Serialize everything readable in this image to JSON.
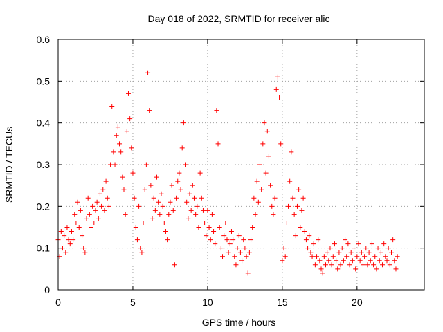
{
  "chart_data": {
    "type": "scatter",
    "title": "Day 018 of 2022, SRMTID for receiver alic",
    "xlabel": "GPS time / hours",
    "ylabel": "SRMTID / TECUs",
    "xlim": [
      0,
      24.5
    ],
    "ylim": [
      0,
      0.6
    ],
    "x_ticks": [
      0,
      5,
      10,
      15,
      20
    ],
    "y_ticks": [
      0,
      0.1,
      0.2,
      0.3,
      0.4,
      0.5,
      0.6
    ],
    "x_tick_labels": [
      "0",
      "5",
      "10",
      "15",
      "20"
    ],
    "y_tick_labels": [
      "0",
      "0.1",
      "0.2",
      "0.3",
      "0.4",
      "0.5",
      "0.6"
    ],
    "grid": true,
    "marker": "+",
    "color": "#ff0000",
    "series": [
      {
        "name": "SRMTID",
        "points": [
          [
            0.0,
            0.12
          ],
          [
            0.1,
            0.08
          ],
          [
            0.2,
            0.14
          ],
          [
            0.3,
            0.1
          ],
          [
            0.4,
            0.13
          ],
          [
            0.5,
            0.09
          ],
          [
            0.6,
            0.15
          ],
          [
            0.7,
            0.12
          ],
          [
            0.8,
            0.11
          ],
          [
            0.9,
            0.14
          ],
          [
            1.0,
            0.12
          ],
          [
            1.1,
            0.18
          ],
          [
            1.2,
            0.16
          ],
          [
            1.3,
            0.21
          ],
          [
            1.4,
            0.15
          ],
          [
            1.5,
            0.19
          ],
          [
            1.6,
            0.13
          ],
          [
            1.7,
            0.1
          ],
          [
            1.8,
            0.09
          ],
          [
            1.9,
            0.17
          ],
          [
            2.0,
            0.22
          ],
          [
            2.1,
            0.18
          ],
          [
            2.2,
            0.15
          ],
          [
            2.3,
            0.2
          ],
          [
            2.4,
            0.16
          ],
          [
            2.5,
            0.19
          ],
          [
            2.6,
            0.21
          ],
          [
            2.7,
            0.17
          ],
          [
            2.8,
            0.23
          ],
          [
            2.9,
            0.2
          ],
          [
            3.0,
            0.24
          ],
          [
            3.1,
            0.19
          ],
          [
            3.2,
            0.26
          ],
          [
            3.3,
            0.22
          ],
          [
            3.4,
            0.2
          ],
          [
            3.5,
            0.3
          ],
          [
            3.6,
            0.44
          ],
          [
            3.7,
            0.33
          ],
          [
            3.8,
            0.3
          ],
          [
            3.9,
            0.37
          ],
          [
            4.0,
            0.39
          ],
          [
            4.1,
            0.35
          ],
          [
            4.2,
            0.33
          ],
          [
            4.3,
            0.27
          ],
          [
            4.4,
            0.24
          ],
          [
            4.5,
            0.18
          ],
          [
            4.6,
            0.38
          ],
          [
            4.7,
            0.47
          ],
          [
            4.8,
            0.41
          ],
          [
            4.9,
            0.34
          ],
          [
            5.0,
            0.28
          ],
          [
            5.1,
            0.22
          ],
          [
            5.2,
            0.15
          ],
          [
            5.3,
            0.12
          ],
          [
            5.4,
            0.2
          ],
          [
            5.5,
            0.1
          ],
          [
            5.6,
            0.09
          ],
          [
            5.7,
            0.16
          ],
          [
            5.8,
            0.24
          ],
          [
            5.9,
            0.3
          ],
          [
            6.0,
            0.52
          ],
          [
            6.1,
            0.43
          ],
          [
            6.2,
            0.25
          ],
          [
            6.3,
            0.17
          ],
          [
            6.4,
            0.22
          ],
          [
            6.5,
            0.19
          ],
          [
            6.6,
            0.27
          ],
          [
            6.7,
            0.21
          ],
          [
            6.8,
            0.18
          ],
          [
            6.9,
            0.23
          ],
          [
            7.0,
            0.2
          ],
          [
            7.1,
            0.16
          ],
          [
            7.2,
            0.14
          ],
          [
            7.3,
            0.12
          ],
          [
            7.4,
            0.18
          ],
          [
            7.5,
            0.21
          ],
          [
            7.6,
            0.25
          ],
          [
            7.7,
            0.19
          ],
          [
            7.8,
            0.06
          ],
          [
            7.9,
            0.22
          ],
          [
            8.0,
            0.26
          ],
          [
            8.1,
            0.28
          ],
          [
            8.2,
            0.24
          ],
          [
            8.3,
            0.34
          ],
          [
            8.4,
            0.4
          ],
          [
            8.5,
            0.3
          ],
          [
            8.6,
            0.21
          ],
          [
            8.7,
            0.17
          ],
          [
            8.8,
            0.23
          ],
          [
            8.9,
            0.19
          ],
          [
            9.0,
            0.25
          ],
          [
            9.1,
            0.22
          ],
          [
            9.2,
            0.18
          ],
          [
            9.3,
            0.2
          ],
          [
            9.4,
            0.15
          ],
          [
            9.5,
            0.28
          ],
          [
            9.6,
            0.22
          ],
          [
            9.7,
            0.19
          ],
          [
            9.8,
            0.16
          ],
          [
            9.9,
            0.13
          ],
          [
            10.0,
            0.19
          ],
          [
            10.1,
            0.15
          ],
          [
            10.2,
            0.12
          ],
          [
            10.3,
            0.18
          ],
          [
            10.4,
            0.14
          ],
          [
            10.5,
            0.11
          ],
          [
            10.6,
            0.43
          ],
          [
            10.7,
            0.35
          ],
          [
            10.8,
            0.15
          ],
          [
            10.9,
            0.1
          ],
          [
            11.0,
            0.08
          ],
          [
            11.1,
            0.13
          ],
          [
            11.2,
            0.16
          ],
          [
            11.3,
            0.12
          ],
          [
            11.4,
            0.09
          ],
          [
            11.5,
            0.11
          ],
          [
            11.6,
            0.14
          ],
          [
            11.7,
            0.12
          ],
          [
            11.8,
            0.08
          ],
          [
            11.9,
            0.06
          ],
          [
            12.0,
            0.1
          ],
          [
            12.1,
            0.13
          ],
          [
            12.2,
            0.09
          ],
          [
            12.3,
            0.07
          ],
          [
            12.4,
            0.12
          ],
          [
            12.5,
            0.1
          ],
          [
            12.6,
            0.08
          ],
          [
            12.7,
            0.04
          ],
          [
            12.8,
            0.09
          ],
          [
            12.9,
            0.12
          ],
          [
            13.0,
            0.15
          ],
          [
            13.1,
            0.22
          ],
          [
            13.2,
            0.18
          ],
          [
            13.3,
            0.26
          ],
          [
            13.4,
            0.21
          ],
          [
            13.5,
            0.3
          ],
          [
            13.6,
            0.24
          ],
          [
            13.7,
            0.35
          ],
          [
            13.8,
            0.4
          ],
          [
            13.9,
            0.28
          ],
          [
            14.0,
            0.38
          ],
          [
            14.1,
            0.32
          ],
          [
            14.2,
            0.25
          ],
          [
            14.3,
            0.2
          ],
          [
            14.4,
            0.18
          ],
          [
            14.5,
            0.22
          ],
          [
            14.6,
            0.48
          ],
          [
            14.7,
            0.51
          ],
          [
            14.8,
            0.46
          ],
          [
            14.9,
            0.35
          ],
          [
            15.0,
            0.07
          ],
          [
            15.1,
            0.1
          ],
          [
            15.2,
            0.08
          ],
          [
            15.3,
            0.16
          ],
          [
            15.4,
            0.2
          ],
          [
            15.5,
            0.26
          ],
          [
            15.6,
            0.33
          ],
          [
            15.7,
            0.22
          ],
          [
            15.8,
            0.18
          ],
          [
            15.9,
            0.13
          ],
          [
            16.0,
            0.2
          ],
          [
            16.1,
            0.24
          ],
          [
            16.2,
            0.15
          ],
          [
            16.3,
            0.19
          ],
          [
            16.4,
            0.22
          ],
          [
            16.5,
            0.14
          ],
          [
            16.6,
            0.12
          ],
          [
            16.7,
            0.1
          ],
          [
            16.8,
            0.13
          ],
          [
            16.9,
            0.09
          ],
          [
            17.0,
            0.08
          ],
          [
            17.1,
            0.11
          ],
          [
            17.2,
            0.06
          ],
          [
            17.3,
            0.08
          ],
          [
            17.4,
            0.12
          ],
          [
            17.5,
            0.07
          ],
          [
            17.6,
            0.05
          ],
          [
            17.7,
            0.04
          ],
          [
            17.8,
            0.08
          ],
          [
            17.9,
            0.06
          ],
          [
            18.0,
            0.09
          ],
          [
            18.1,
            0.07
          ],
          [
            18.2,
            0.1
          ],
          [
            18.3,
            0.06
          ],
          [
            18.4,
            0.08
          ],
          [
            18.5,
            0.11
          ],
          [
            18.6,
            0.07
          ],
          [
            18.7,
            0.05
          ],
          [
            18.8,
            0.09
          ],
          [
            18.9,
            0.06
          ],
          [
            19.0,
            0.1
          ],
          [
            19.1,
            0.07
          ],
          [
            19.2,
            0.12
          ],
          [
            19.3,
            0.08
          ],
          [
            19.4,
            0.11
          ],
          [
            19.5,
            0.06
          ],
          [
            19.6,
            0.09
          ],
          [
            19.7,
            0.07
          ],
          [
            19.8,
            0.1
          ],
          [
            19.9,
            0.05
          ],
          [
            20.0,
            0.08
          ],
          [
            20.1,
            0.11
          ],
          [
            20.2,
            0.07
          ],
          [
            20.3,
            0.09
          ],
          [
            20.4,
            0.06
          ],
          [
            20.5,
            0.08
          ],
          [
            20.6,
            0.1
          ],
          [
            20.7,
            0.06
          ],
          [
            20.8,
            0.09
          ],
          [
            20.9,
            0.07
          ],
          [
            21.0,
            0.11
          ],
          [
            21.1,
            0.06
          ],
          [
            21.2,
            0.08
          ],
          [
            21.3,
            0.05
          ],
          [
            21.4,
            0.1
          ],
          [
            21.5,
            0.07
          ],
          [
            21.6,
            0.09
          ],
          [
            21.7,
            0.06
          ],
          [
            21.8,
            0.11
          ],
          [
            21.9,
            0.08
          ],
          [
            22.0,
            0.07
          ],
          [
            22.1,
            0.1
          ],
          [
            22.2,
            0.06
          ],
          [
            22.3,
            0.09
          ],
          [
            22.4,
            0.12
          ],
          [
            22.5,
            0.07
          ],
          [
            22.6,
            0.05
          ],
          [
            22.7,
            0.08
          ]
        ]
      }
    ]
  }
}
